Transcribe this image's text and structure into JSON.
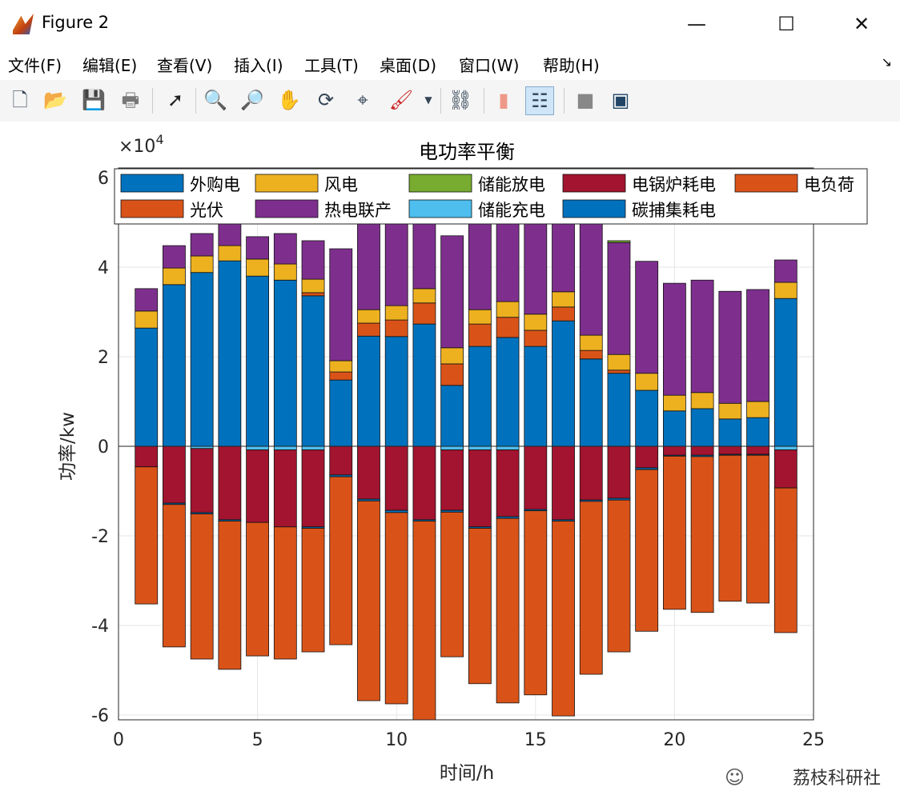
{
  "window": {
    "title": "Figure 2",
    "minimize": "—",
    "maximize": "☐",
    "close": "✕"
  },
  "menu": [
    "文件(F)",
    "编辑(E)",
    "查看(V)",
    "插入(I)",
    "工具(T)",
    "桌面(D)",
    "窗口(W)",
    "帮助(H)"
  ],
  "toolbar": [
    "new-file",
    "open",
    "save",
    "print",
    "pointer",
    "zoom-in",
    "zoom-out",
    "pan",
    "rotate-3d",
    "data-cursor",
    "brush",
    "link",
    "colorbar",
    "legend",
    "hide-plot-tools",
    "show-plot-tools"
  ],
  "watermark": "荔枝科研社",
  "chart_data": {
    "type": "bar",
    "stacked": true,
    "title": "电功率平衡",
    "xlabel": "时间/h",
    "ylabel": "功率/kw",
    "y_multiplier": "×10",
    "y_exponent": "4",
    "xlim": [
      0,
      25
    ],
    "ylim": [
      -6.1,
      6.1
    ],
    "xticks": [
      "0",
      "5",
      "10",
      "15",
      "20",
      "25"
    ],
    "yticks": [
      "6",
      "4",
      "2",
      "0",
      "-2",
      "-4",
      "-6"
    ],
    "grid": true,
    "legend_position": "top",
    "x": [
      1,
      2,
      3,
      4,
      5,
      6,
      7,
      8,
      9,
      10,
      11,
      12,
      13,
      14,
      15,
      16,
      17,
      18,
      19,
      20,
      21,
      22,
      23,
      24
    ],
    "series": [
      {
        "name": "外购电",
        "color": "#0072BD",
        "values": [
          2.64,
          3.61,
          3.88,
          4.14,
          3.8,
          3.71,
          3.36,
          1.48,
          2.46,
          2.45,
          2.73,
          1.36,
          2.23,
          2.43,
          2.23,
          2.8,
          1.95,
          1.63,
          1.25,
          0.79,
          0.84,
          0.61,
          0.64,
          3.3
        ]
      },
      {
        "name": "光伏",
        "color": "#D95319",
        "values": [
          0,
          0,
          0,
          0,
          0,
          0,
          0.07,
          0.18,
          0.29,
          0.37,
          0.47,
          0.48,
          0.5,
          0.45,
          0.36,
          0.31,
          0.19,
          0.07,
          0,
          0,
          0,
          0,
          0,
          0
        ]
      },
      {
        "name": "风电",
        "color": "#EDB120",
        "values": [
          0.38,
          0.37,
          0.37,
          0.34,
          0.38,
          0.36,
          0.3,
          0.25,
          0.3,
          0.32,
          0.32,
          0.36,
          0.32,
          0.35,
          0.36,
          0.34,
          0.34,
          0.35,
          0.38,
          0.35,
          0.36,
          0.35,
          0.36,
          0.36
        ]
      },
      {
        "name": "热电联产",
        "color": "#7E2F8E",
        "values": [
          0.5,
          0.5,
          0.5,
          0.52,
          0.5,
          0.68,
          0.86,
          2.5,
          2.63,
          2.61,
          2.68,
          2.5,
          2.25,
          2.5,
          2.6,
          2.57,
          2.61,
          2.5,
          2.5,
          2.5,
          2.51,
          2.5,
          2.5,
          0.5
        ]
      },
      {
        "name": "储能放电",
        "color": "#77AC30",
        "values": [
          0,
          0,
          0,
          0,
          0,
          0,
          0,
          0,
          0,
          0,
          0,
          0,
          0,
          0,
          0,
          0,
          0,
          0.04,
          0,
          0,
          0,
          0,
          0,
          0
        ]
      },
      {
        "name": "储能充电",
        "color": "#4DBEEE",
        "values": [
          0,
          0,
          -0.05,
          0,
          -0.08,
          -0.08,
          -0.08,
          0,
          0,
          0,
          0,
          -0.08,
          -0.08,
          -0.08,
          0,
          0,
          0,
          0,
          0,
          0,
          0,
          0,
          0,
          -0.08
        ]
      },
      {
        "name": "电锅炉耗电",
        "color": "#A2142F",
        "values": [
          -0.46,
          -1.27,
          -1.43,
          -1.64,
          -1.62,
          -1.72,
          -1.72,
          -0.64,
          -1.18,
          -1.43,
          -1.64,
          -1.35,
          -1.72,
          -1.49,
          -1.41,
          -1.64,
          -1.2,
          -1.16,
          -0.48,
          -0.2,
          -0.2,
          -0.18,
          -0.18,
          -0.85
        ]
      },
      {
        "name": "碳捕集耗电",
        "color": "#0072BD",
        "values": [
          0,
          -0.03,
          -0.03,
          -0.03,
          0,
          0,
          -0.03,
          -0.04,
          -0.04,
          -0.05,
          -0.03,
          -0.04,
          -0.03,
          -0.04,
          -0.03,
          -0.03,
          -0.03,
          -0.04,
          -0.04,
          -0.02,
          -0.03,
          -0.02,
          -0.02,
          0
        ]
      },
      {
        "name": "电负荷",
        "color": "#D95319",
        "values": [
          -3.06,
          -3.18,
          -3.24,
          -3.31,
          -2.98,
          -2.95,
          -2.76,
          -3.75,
          -4.46,
          -4.27,
          -4.53,
          -3.23,
          -3.47,
          -4.12,
          -4.11,
          -4.35,
          -3.86,
          -3.39,
          -3.61,
          -3.42,
          -3.48,
          -3.26,
          -3.3,
          -3.23
        ]
      }
    ],
    "legend_order": [
      "外购电",
      "风电",
      "储能放电",
      "电锅炉耗电",
      "电负荷",
      "光伏",
      "热电联产",
      "储能充电",
      "碳捕集耗电"
    ]
  }
}
